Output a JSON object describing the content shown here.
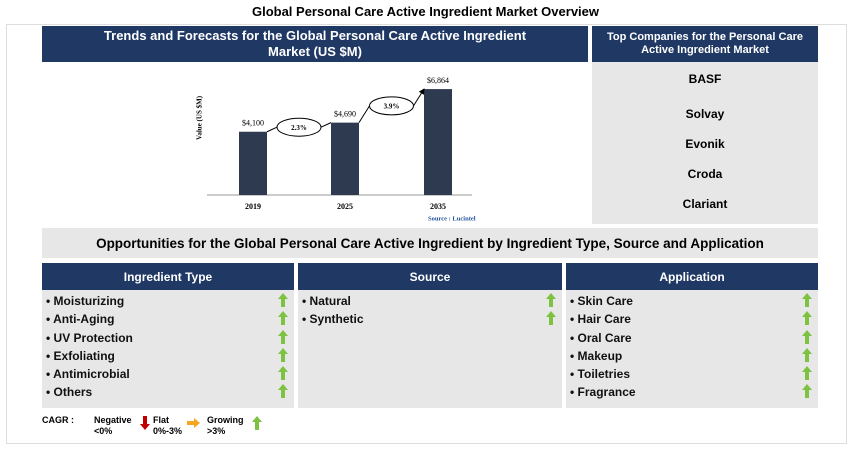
{
  "title": "Global Personal Care Active Ingredient Market Overview",
  "chart_data": {
    "type": "bar",
    "title": "Trends and Forecasts for the Global Personal Care Active Ingredient Market (US $M)",
    "y_label": "Value (US $M)",
    "categories": [
      "2019",
      "2025",
      "2035"
    ],
    "values": [
      4100,
      4690,
      6864
    ],
    "value_labels": [
      "$4,100",
      "$4,690",
      "$6,864"
    ],
    "color": "#2d3a4f",
    "ylim": [
      0,
      7000
    ],
    "annotations": [
      "2.3%",
      "3.9%"
    ],
    "source": "Source : Lucintel"
  },
  "companies": {
    "title": "Top Companies for the Personal Care Active Ingredient Market",
    "items": [
      "BASF",
      "Solvay",
      "Evonik",
      "Croda",
      "Clariant"
    ]
  },
  "opportunities": {
    "title": "Opportunities for the Global Personal Care Active Ingredient by Ingredient Type, Source and Application",
    "columns": [
      {
        "title": "Ingredient Type",
        "items": [
          "Moisturizing",
          "Anti-Aging",
          "UV Protection",
          "Exfoliating",
          "Antimicrobial",
          "Others"
        ]
      },
      {
        "title": "Source",
        "items": [
          "Natural",
          "Synthetic"
        ]
      },
      {
        "title": "Application",
        "items": [
          "Skin Care",
          "Hair Care",
          "Oral Care",
          "Makeup",
          "Toiletries",
          "Fragrance"
        ]
      }
    ]
  },
  "legend": {
    "label": "CAGR :",
    "negative": [
      "Negative",
      "<0%"
    ],
    "flat": [
      "Flat",
      "0%-3%"
    ],
    "growing": [
      "Growing",
      ">3%"
    ]
  }
}
